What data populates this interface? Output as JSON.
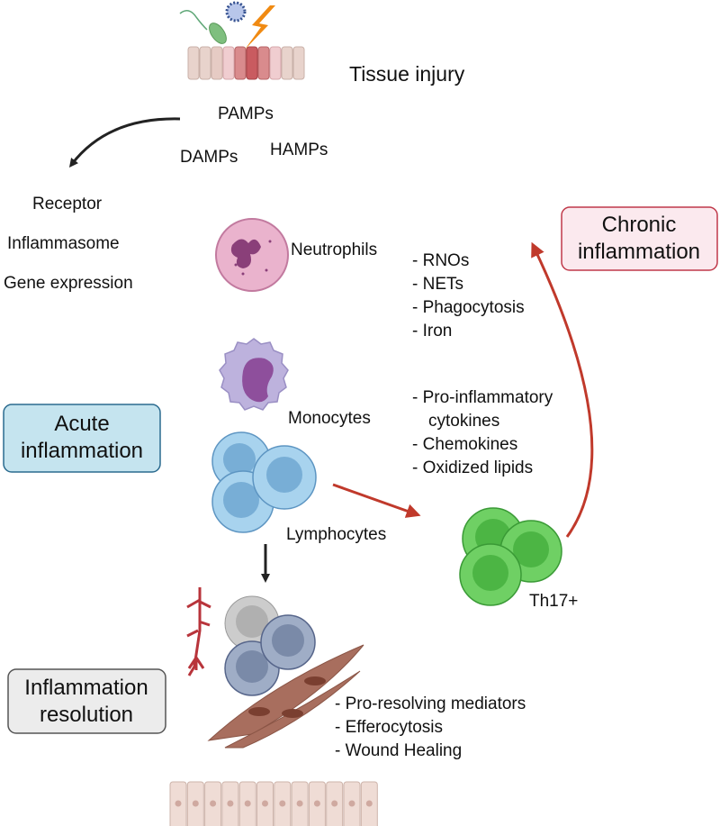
{
  "top": {
    "tissue_injury": "Tissue injury",
    "pamps": "PAMPs",
    "damps": "DAMPs",
    "hamps": "HAMPs"
  },
  "sensing": [
    "Receptor",
    "Inflammasome",
    "Gene expression"
  ],
  "cells": {
    "neutrophils": "Neutrophils",
    "monocytes": "Monocytes",
    "lymphocytes": "Lymphocytes",
    "th17": "Th17+"
  },
  "neutrophil_effects": [
    "- RNOs",
    "- NETs",
    "- Phagocytosis",
    "- Iron"
  ],
  "monocyte_effects": [
    "- Pro-inflammatory",
    "cytokines",
    "- Chemokines",
    "- Oxidized lipids"
  ],
  "resolution_effects": [
    "- Pro-resolving mediators",
    "- Efferocytosis",
    "- Wound Healing"
  ],
  "boxes": {
    "chronic": {
      "line1": "Chronic",
      "line2": "inflammation",
      "fill": "#fbe9ee",
      "border": "#c0394a"
    },
    "acute": {
      "line1": "Acute",
      "line2": "inflammation",
      "fill": "#c5e4ef",
      "border": "#2b6b8f"
    },
    "resolution": {
      "line1": "Inflammation",
      "line2": "resolution",
      "fill": "#ececec",
      "border": "#555555"
    }
  },
  "colors": {
    "red_arrow": "#c0392b",
    "black_arrow": "#222222"
  }
}
